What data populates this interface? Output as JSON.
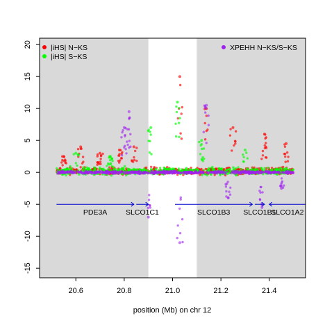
{
  "chart_data": {
    "type": "scatter",
    "xlabel": "position (Mb) on chr 12",
    "ylabel": "",
    "xlim": [
      20.45,
      21.55
    ],
    "ylim": [
      -16.5,
      21
    ],
    "x_ticks": [
      20.6,
      20.8,
      21.0,
      21.2,
      21.4
    ],
    "x_tick_labels": [
      "20.6",
      "20.8",
      "21.0",
      "21.2",
      "21.4"
    ],
    "y_ticks": [
      -15,
      -10,
      -5,
      0,
      5,
      10,
      15,
      20
    ],
    "y_tick_labels": [
      "-15",
      "-10",
      "-5",
      "0",
      "5",
      "10",
      "15",
      "20"
    ],
    "background_color": "#d9d9d9",
    "highlight_region": {
      "x_start": 20.9,
      "x_end": 21.1,
      "color": "#ffffff"
    },
    "legend": [
      {
        "label": "|iHS| N−KS",
        "color": "#ff0000",
        "placement": "top-left"
      },
      {
        "label": "|iHS| S−KS",
        "color": "#00ff00",
        "placement": "top-left"
      },
      {
        "label": "XPEHH N−KS/S−KS",
        "color": "#a020f0",
        "placement": "top-right"
      }
    ],
    "series": [
      {
        "name": "|iHS| N−KS",
        "color": "#ff0000",
        "peaks": [
          {
            "x": 20.55,
            "y": 2.5
          },
          {
            "x": 20.62,
            "y": 4
          },
          {
            "x": 20.7,
            "y": 3
          },
          {
            "x": 20.78,
            "y": 3.5
          },
          {
            "x": 20.84,
            "y": 4
          },
          {
            "x": 21.03,
            "y": 15
          },
          {
            "x": 21.14,
            "y": 10
          },
          {
            "x": 21.25,
            "y": 7
          },
          {
            "x": 21.38,
            "y": 6
          },
          {
            "x": 21.47,
            "y": 4.5
          }
        ]
      },
      {
        "name": "|iHS| S−KS",
        "color": "#00ff00",
        "peaks": [
          {
            "x": 20.6,
            "y": 3
          },
          {
            "x": 20.74,
            "y": 2.5
          },
          {
            "x": 20.91,
            "y": 7
          },
          {
            "x": 21.02,
            "y": 11
          },
          {
            "x": 21.12,
            "y": 5
          },
          {
            "x": 21.3,
            "y": 3.5
          }
        ]
      },
      {
        "name": "XPEHH N−KS/S−KS",
        "color": "#a020f0",
        "peaks": [
          {
            "x": 20.82,
            "y": 9.5
          },
          {
            "x": 20.8,
            "y": 7
          },
          {
            "x": 20.9,
            "y": -7
          },
          {
            "x": 21.03,
            "y": -11
          },
          {
            "x": 21.14,
            "y": 10.5
          },
          {
            "x": 21.23,
            "y": -4
          },
          {
            "x": 21.37,
            "y": -5.5
          },
          {
            "x": 21.45,
            "y": -2.5
          }
        ]
      }
    ],
    "genes": [
      {
        "name": "PDE3A",
        "start": 20.52,
        "end": 20.84,
        "y": -5,
        "direction": "forward"
      },
      {
        "name": "SLCO1C1",
        "start": 20.85,
        "end": 20.9,
        "y": -5,
        "direction": "forward"
      },
      {
        "name": "SLCO1B3",
        "start": 21.01,
        "end": 21.33,
        "y": -5,
        "direction": "forward"
      },
      {
        "name": "SLCO1B1",
        "start": 21.34,
        "end": 21.38,
        "y": -5,
        "direction": "forward"
      },
      {
        "name": "SLCO1A2",
        "start": 21.4,
        "end": 21.55,
        "y": -5,
        "direction": "reverse"
      }
    ],
    "gene_line_color": "#0000cd",
    "grid": false
  }
}
